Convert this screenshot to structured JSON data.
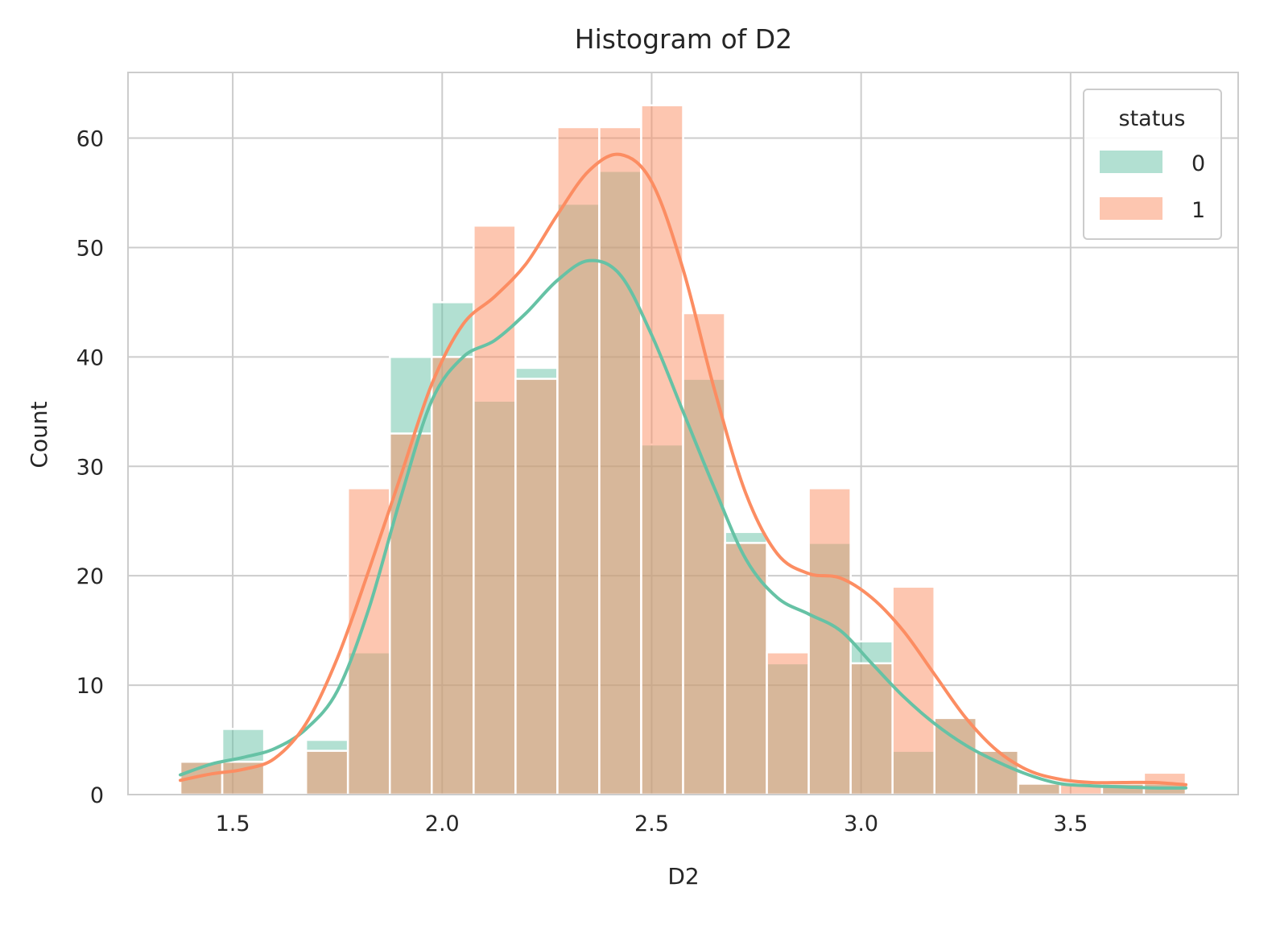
{
  "chart_data": {
    "type": "histogram",
    "title": "Histogram of D2",
    "xlabel": "D2",
    "ylabel": "Count",
    "xlim": [
      1.25,
      3.9
    ],
    "ylim": [
      0,
      66
    ],
    "xticks": [
      1.5,
      2.0,
      2.5,
      3.0,
      3.5
    ],
    "xtick_labels": [
      "1.5",
      "2.0",
      "2.5",
      "3.0",
      "3.5"
    ],
    "yticks": [
      0,
      10,
      20,
      30,
      40,
      50,
      60
    ],
    "ytick_labels": [
      "0",
      "10",
      "20",
      "30",
      "40",
      "50",
      "60"
    ],
    "grid": true,
    "legend_title": "status",
    "legend_position": "top-right",
    "bin_edges": [
      1.375,
      1.475,
      1.575,
      1.675,
      1.775,
      1.875,
      1.975,
      2.075,
      2.175,
      2.275,
      2.375,
      2.475,
      2.575,
      2.675,
      2.775,
      2.875,
      2.975,
      3.075,
      3.175,
      3.275,
      3.375,
      3.475,
      3.575,
      3.675,
      3.775
    ],
    "series": [
      {
        "name": "0",
        "color": "#66c2a5",
        "values": [
          3,
          6,
          0,
          5,
          13,
          40,
          45,
          36,
          39,
          54,
          57,
          32,
          38,
          24,
          12,
          23,
          14,
          4,
          7,
          4,
          1,
          0,
          1,
          1
        ],
        "kde": [
          [
            1.375,
            1.8
          ],
          [
            1.45,
            2.8
          ],
          [
            1.525,
            3.4
          ],
          [
            1.6,
            4.2
          ],
          [
            1.675,
            6.0
          ],
          [
            1.75,
            9.5
          ],
          [
            1.825,
            17.0
          ],
          [
            1.9,
            27.0
          ],
          [
            1.975,
            36.0
          ],
          [
            2.05,
            40.0
          ],
          [
            2.125,
            41.5
          ],
          [
            2.2,
            44.0
          ],
          [
            2.275,
            47.0
          ],
          [
            2.35,
            48.8
          ],
          [
            2.425,
            47.5
          ],
          [
            2.5,
            42.0
          ],
          [
            2.575,
            35.0
          ],
          [
            2.65,
            28.0
          ],
          [
            2.725,
            21.5
          ],
          [
            2.8,
            18.0
          ],
          [
            2.875,
            16.5
          ],
          [
            2.95,
            15.0
          ],
          [
            3.025,
            12.0
          ],
          [
            3.1,
            9.0
          ],
          [
            3.175,
            6.5
          ],
          [
            3.25,
            4.5
          ],
          [
            3.325,
            3.0
          ],
          [
            3.4,
            1.8
          ],
          [
            3.475,
            1.0
          ],
          [
            3.55,
            0.8
          ],
          [
            3.625,
            0.7
          ],
          [
            3.7,
            0.6
          ],
          [
            3.775,
            0.6
          ]
        ]
      },
      {
        "name": "1",
        "color": "#fc8d62",
        "values": [
          3,
          3,
          0,
          4,
          28,
          33,
          40,
          52,
          38,
          61,
          61,
          63,
          44,
          23,
          13,
          28,
          12,
          19,
          7,
          4,
          1,
          1,
          1,
          2
        ],
        "kde": [
          [
            1.375,
            1.3
          ],
          [
            1.45,
            1.9
          ],
          [
            1.525,
            2.3
          ],
          [
            1.6,
            3.3
          ],
          [
            1.675,
            6.5
          ],
          [
            1.75,
            12.5
          ],
          [
            1.825,
            20.5
          ],
          [
            1.9,
            29.0
          ],
          [
            1.975,
            37.5
          ],
          [
            2.05,
            43.0
          ],
          [
            2.125,
            45.5
          ],
          [
            2.2,
            48.5
          ],
          [
            2.275,
            53.0
          ],
          [
            2.35,
            57.0
          ],
          [
            2.425,
            58.5
          ],
          [
            2.5,
            56.0
          ],
          [
            2.575,
            48.0
          ],
          [
            2.65,
            37.0
          ],
          [
            2.725,
            27.5
          ],
          [
            2.8,
            22.0
          ],
          [
            2.875,
            20.2
          ],
          [
            2.95,
            19.8
          ],
          [
            3.025,
            18.0
          ],
          [
            3.1,
            15.0
          ],
          [
            3.175,
            11.0
          ],
          [
            3.25,
            7.0
          ],
          [
            3.325,
            4.0
          ],
          [
            3.4,
            2.2
          ],
          [
            3.475,
            1.4
          ],
          [
            3.55,
            1.1
          ],
          [
            3.625,
            1.1
          ],
          [
            3.7,
            1.1
          ],
          [
            3.775,
            0.9
          ]
        ]
      }
    ]
  }
}
